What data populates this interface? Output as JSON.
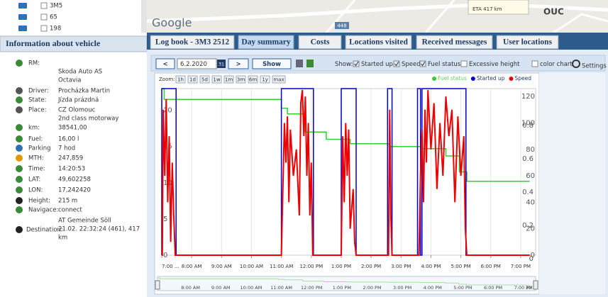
{
  "vehicle_list": {
    "items": [
      "3M5",
      "65",
      "198"
    ]
  },
  "map": {
    "logo": "Google",
    "eta": "ETA 417 km",
    "city": "OUC",
    "road": "448"
  },
  "vehicle": {
    "title": "Information about vehicle",
    "fields": [
      {
        "label": "RM:",
        "lines": [
          "Skoda Auto AS",
          "Octavia"
        ]
      },
      {
        "label": "Driver:",
        "lines": [
          "Procházka Martin"
        ]
      },
      {
        "label": "State:",
        "lines": [
          "Jízda prázdná"
        ]
      },
      {
        "label": "Place:",
        "lines": [
          "CZ Olomouc",
          "2nd class motorway"
        ]
      },
      {
        "label": "km:",
        "lines": [
          "38541,00"
        ]
      },
      {
        "label": "Fuel:",
        "lines": [
          "16,00 l"
        ]
      },
      {
        "label": "Parking",
        "lines": [
          "7 hod"
        ]
      },
      {
        "label": "MTH:",
        "lines": [
          "247,859"
        ]
      },
      {
        "label": "Time:",
        "lines": [
          "14:20:53"
        ]
      },
      {
        "label": "LAT:",
        "lines": [
          "49,602258"
        ]
      },
      {
        "label": "LON:",
        "lines": [
          "17,242420"
        ]
      },
      {
        "label": "Height:",
        "lines": [
          "215 m"
        ]
      },
      {
        "label": "Navigace:",
        "lines": [
          "connect"
        ]
      },
      {
        "label": "Destination:",
        "lines": [
          "AT Gemeinde Söll",
          "21.02. 22:32:24 (461), 417",
          "km"
        ]
      }
    ]
  },
  "tabs": [
    {
      "label": "Log book - 3M3 2512",
      "active": false
    },
    {
      "label": "Day summary",
      "active": true
    },
    {
      "label": "Costs",
      "active": false
    },
    {
      "label": "Locations visited",
      "active": false
    },
    {
      "label": "Received messages",
      "active": false
    },
    {
      "label": "User locations",
      "active": false
    }
  ],
  "toolbar": {
    "prev": "<",
    "date": "6.2.2020",
    "calendar": "31",
    "next": ">",
    "show_button": "Show",
    "show_label": "Show:",
    "checks": [
      {
        "label": "Started up",
        "checked": true
      },
      {
        "label": "Speed",
        "checked": true
      },
      {
        "label": "Fuel status",
        "checked": true
      },
      {
        "label": "Excessive height",
        "checked": false
      }
    ],
    "color_chart": "color chart",
    "settings": "Settings",
    "zoom_label": "Zoom:",
    "zoom": [
      "1h",
      "1d",
      "5d",
      "1w",
      "1m",
      "3m",
      "6m",
      "1y",
      "max"
    ]
  },
  "chart_data": {
    "type": "line",
    "grid": "x",
    "legend": "top-right",
    "xlim": [
      7,
      19.5
    ],
    "xticks": [
      {
        "value": 7,
        "label": "7:00 ..."
      },
      {
        "value": 8,
        "label": "8:00 AM"
      },
      {
        "value": 9,
        "label": "9:00 AM"
      },
      {
        "value": 10,
        "label": "10:00 AM"
      },
      {
        "value": 11,
        "label": "11:00 AM"
      },
      {
        "value": 12,
        "label": "12:00 PM"
      },
      {
        "value": 13,
        "label": "1:00 PM"
      },
      {
        "value": 14,
        "label": "2:00 PM"
      },
      {
        "value": 15,
        "label": "3:00 PM"
      },
      {
        "value": 16,
        "label": "4:00 PM"
      },
      {
        "value": 17,
        "label": "5:00 PM"
      },
      {
        "value": 18,
        "label": "6:00 PM"
      },
      {
        "value": 19,
        "label": "7:00 PM"
      }
    ],
    "ylim": [
      0,
      23
    ],
    "yticks": [
      0,
      5,
      10,
      15,
      20
    ],
    "y2lim": [
      0,
      126
    ],
    "y2ticks": [
      0,
      20,
      40,
      60,
      80,
      100,
      120
    ],
    "y3lim": [
      0,
      1
    ],
    "y3ticks": [
      0,
      0.2,
      0.4,
      0.6,
      0.8
    ],
    "navigator_end": "30",
    "series": [
      {
        "name": "Fuel status",
        "color": "#33cc33",
        "axis": "y",
        "x": [
          7.0,
          7.08,
          7.08,
          11.0,
          11.0,
          11.2,
          11.2,
          11.8,
          11.8,
          12.5,
          12.5,
          13.3,
          13.3,
          14.6,
          14.6,
          15.7,
          15.7,
          16.5,
          16.5,
          16.95,
          16.95,
          17.2,
          17.2,
          19.3
        ],
        "values": [
          23,
          23,
          21.5,
          21.5,
          20.3,
          20.3,
          19.5,
          19.5,
          17.0,
          17.0,
          16.0,
          16.0,
          15.4,
          15.4,
          15.0,
          15.0,
          14.7,
          14.7,
          13.7,
          13.7,
          11.5,
          11.5,
          10.2,
          10.2
        ]
      },
      {
        "name": "Started up",
        "color": "#0000cc",
        "axis": "y3",
        "x": [
          7.0,
          7.0,
          7.48,
          7.48,
          11.0,
          11.0,
          12.07,
          12.07,
          13.0,
          13.0,
          13.5,
          13.5,
          14.55,
          14.55,
          14.7,
          14.7,
          15.55,
          15.55,
          15.65,
          15.65,
          15.7,
          15.7,
          17.17,
          17.17,
          19.3
        ],
        "values": [
          0,
          1,
          1,
          0,
          0,
          1,
          1,
          0,
          0,
          1,
          1,
          0,
          0,
          1,
          1,
          0,
          0,
          1,
          1,
          0,
          0,
          1,
          1,
          0,
          0
        ]
      },
      {
        "name": "Speed",
        "color": "#ee0000",
        "axis": "y2",
        "x": [
          7.0,
          7.02,
          7.05,
          7.1,
          7.15,
          7.2,
          7.25,
          7.3,
          7.35,
          7.4,
          7.45,
          11.0,
          11.05,
          11.1,
          11.15,
          11.2,
          11.25,
          11.3,
          11.4,
          11.5,
          11.6,
          11.65,
          11.7,
          11.75,
          11.8,
          11.85,
          11.9,
          11.95,
          12.0,
          12.05,
          13.0,
          13.05,
          13.1,
          13.15,
          13.2,
          13.25,
          13.3,
          13.4,
          13.45,
          13.5,
          14.58,
          14.62,
          14.66,
          14.7,
          15.6,
          15.65,
          15.7,
          15.75,
          15.8,
          15.85,
          15.9,
          16.0,
          16.1,
          16.2,
          16.3,
          16.4,
          16.5,
          16.6,
          16.7,
          16.8,
          16.9,
          17.0,
          17.1,
          17.15,
          17.2,
          19.3
        ],
        "values": [
          0,
          0,
          110,
          60,
          118,
          40,
          90,
          10,
          70,
          30,
          0,
          0,
          50,
          100,
          70,
          105,
          40,
          95,
          60,
          80,
          30,
          115,
          125,
          90,
          120,
          60,
          100,
          30,
          70,
          0,
          0,
          90,
          40,
          100,
          60,
          95,
          20,
          50,
          10,
          0,
          0,
          110,
          30,
          0,
          0,
          60,
          95,
          40,
          110,
          70,
          125,
          80,
          115,
          50,
          100,
          60,
          120,
          90,
          110,
          40,
          105,
          60,
          90,
          20,
          0,
          0
        ]
      }
    ]
  }
}
